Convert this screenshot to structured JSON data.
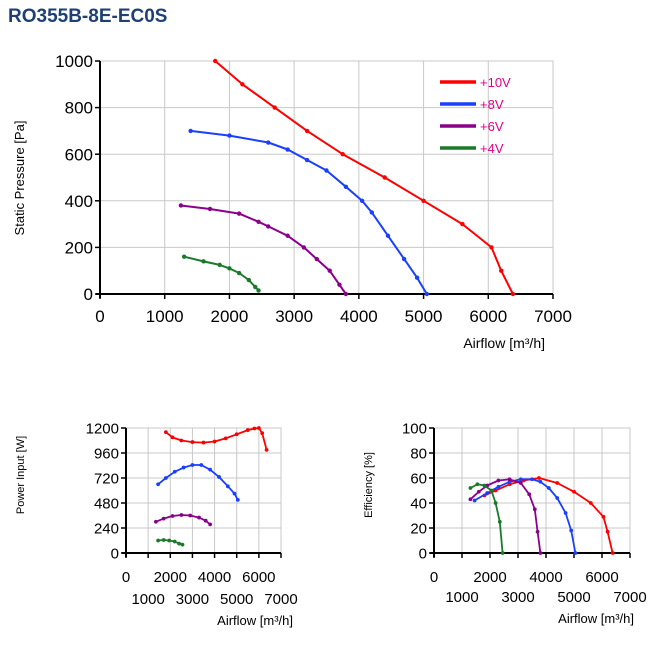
{
  "header": {
    "title": "RO355B-8E-EC0S"
  },
  "chart_data": [
    {
      "type": "line",
      "xlabel": "Airflow [m³/h]",
      "ylabel": "Static Pressure [Pa]",
      "xlim": [
        0,
        7000
      ],
      "ylim": [
        0,
        1000
      ],
      "x_ticks": [
        "0",
        "1000",
        "2000",
        "3000",
        "4000",
        "5000",
        "6000",
        "7000"
      ],
      "y_ticks": [
        "0",
        "200",
        "400",
        "600",
        "800",
        "1000"
      ],
      "grid": true,
      "legend": "top-right",
      "series": [
        {
          "name": "+10V",
          "color": "#ff0000",
          "points": [
            [
              1780,
              1000
            ],
            [
              2200,
              900
            ],
            [
              2700,
              800
            ],
            [
              3200,
              700
            ],
            [
              3750,
              600
            ],
            [
              4400,
              500
            ],
            [
              5000,
              400
            ],
            [
              5600,
              300
            ],
            [
              6050,
              200
            ],
            [
              6200,
              100
            ],
            [
              6380,
              0
            ]
          ]
        },
        {
          "name": "+8V",
          "color": "#1a3fff",
          "points": [
            [
              1400,
              700
            ],
            [
              2000,
              680
            ],
            [
              2600,
              650
            ],
            [
              2900,
              620
            ],
            [
              3200,
              575
            ],
            [
              3500,
              530
            ],
            [
              3800,
              460
            ],
            [
              4050,
              400
            ],
            [
              4200,
              350
            ],
            [
              4450,
              250
            ],
            [
              4700,
              150
            ],
            [
              4900,
              70
            ],
            [
              5050,
              0
            ]
          ]
        },
        {
          "name": "+6V",
          "color": "#8b008b",
          "points": [
            [
              1250,
              380
            ],
            [
              1700,
              365
            ],
            [
              2150,
              345
            ],
            [
              2450,
              310
            ],
            [
              2600,
              290
            ],
            [
              2900,
              250
            ],
            [
              3150,
              200
            ],
            [
              3350,
              150
            ],
            [
              3550,
              100
            ],
            [
              3700,
              40
            ],
            [
              3800,
              0
            ]
          ]
        },
        {
          "name": "+4V",
          "color": "#1a7a2a",
          "points": [
            [
              1300,
              160
            ],
            [
              1600,
              140
            ],
            [
              1850,
              125
            ],
            [
              2000,
              110
            ],
            [
              2150,
              90
            ],
            [
              2300,
              60
            ],
            [
              2400,
              30
            ],
            [
              2450,
              15
            ]
          ]
        }
      ]
    },
    {
      "type": "line",
      "xlabel": "Airflow [m³/h]",
      "ylabel": "Power Input [W]",
      "xlim": [
        0,
        7000
      ],
      "ylim": [
        0,
        1200
      ],
      "x_ticks_top": [
        "0",
        "2000",
        "4000",
        "6000"
      ],
      "x_ticks_bottom": [
        "1000",
        "3000",
        "5000",
        "7000"
      ],
      "y_ticks": [
        "0",
        "240",
        "480",
        "720",
        "960",
        "1200"
      ],
      "grid": true,
      "series": [
        {
          "name": "+10V",
          "color": "#ff0000",
          "points": [
            [
              1800,
              1160
            ],
            [
              2100,
              1110
            ],
            [
              2500,
              1080
            ],
            [
              3000,
              1065
            ],
            [
              3500,
              1060
            ],
            [
              4000,
              1070
            ],
            [
              4500,
              1100
            ],
            [
              5000,
              1140
            ],
            [
              5500,
              1180
            ],
            [
              5800,
              1195
            ],
            [
              6000,
              1200
            ],
            [
              6150,
              1150
            ],
            [
              6350,
              990
            ]
          ]
        },
        {
          "name": "+8V",
          "color": "#1a3fff",
          "points": [
            [
              1450,
              660
            ],
            [
              1800,
              720
            ],
            [
              2200,
              780
            ],
            [
              2600,
              820
            ],
            [
              3000,
              845
            ],
            [
              3400,
              845
            ],
            [
              3800,
              800
            ],
            [
              4200,
              730
            ],
            [
              4600,
              640
            ],
            [
              4900,
              570
            ],
            [
              5050,
              510
            ]
          ]
        },
        {
          "name": "+6V",
          "color": "#8b008b",
          "points": [
            [
              1350,
              300
            ],
            [
              1700,
              330
            ],
            [
              2100,
              355
            ],
            [
              2500,
              365
            ],
            [
              2900,
              360
            ],
            [
              3300,
              340
            ],
            [
              3600,
              310
            ],
            [
              3800,
              275
            ]
          ]
        },
        {
          "name": "+4V",
          "color": "#1a7a2a",
          "points": [
            [
              1450,
              120
            ],
            [
              1700,
              125
            ],
            [
              1950,
              120
            ],
            [
              2200,
              110
            ],
            [
              2400,
              90
            ],
            [
              2550,
              80
            ]
          ]
        }
      ]
    },
    {
      "type": "line",
      "xlabel": "Airflow [m³/h]",
      "ylabel": "Efficiency [%]",
      "xlim": [
        0,
        7000
      ],
      "ylim": [
        0,
        100
      ],
      "x_ticks_top": [
        "0",
        "2000",
        "4000",
        "6000"
      ],
      "x_ticks_bottom": [
        "1000",
        "3000",
        "5000",
        "7000"
      ],
      "y_ticks": [
        "0",
        "20",
        "40",
        "60",
        "80",
        "100"
      ],
      "grid": true,
      "series": [
        {
          "name": "+10V",
          "color": "#ff0000",
          "points": [
            [
              1800,
              46
            ],
            [
              2200,
              50
            ],
            [
              2700,
              55
            ],
            [
              3200,
              58
            ],
            [
              3750,
              60
            ],
            [
              4400,
              56
            ],
            [
              5000,
              49
            ],
            [
              5600,
              40
            ],
            [
              6050,
              29
            ],
            [
              6200,
              17
            ],
            [
              6380,
              0
            ]
          ]
        },
        {
          "name": "+8V",
          "color": "#1a3fff",
          "points": [
            [
              1450,
              42
            ],
            [
              1900,
              48
            ],
            [
              2300,
              53
            ],
            [
              2700,
              57
            ],
            [
              3100,
              59
            ],
            [
              3500,
              59
            ],
            [
              3800,
              57
            ],
            [
              4100,
              52
            ],
            [
              4400,
              44
            ],
            [
              4700,
              32
            ],
            [
              4900,
              18
            ],
            [
              5050,
              0
            ]
          ]
        },
        {
          "name": "+6V",
          "color": "#8b008b",
          "points": [
            [
              1300,
              43
            ],
            [
              1600,
              49
            ],
            [
              1900,
              54
            ],
            [
              2300,
              58
            ],
            [
              2700,
              59
            ],
            [
              3100,
              56
            ],
            [
              3400,
              47
            ],
            [
              3600,
              35
            ],
            [
              3700,
              17
            ],
            [
              3800,
              0
            ]
          ]
        },
        {
          "name": "+4V",
          "color": "#1a7a2a",
          "points": [
            [
              1300,
              52
            ],
            [
              1550,
              55
            ],
            [
              1800,
              54
            ],
            [
              2050,
              50
            ],
            [
              2200,
              40
            ],
            [
              2350,
              25
            ],
            [
              2450,
              0
            ]
          ]
        }
      ]
    }
  ]
}
